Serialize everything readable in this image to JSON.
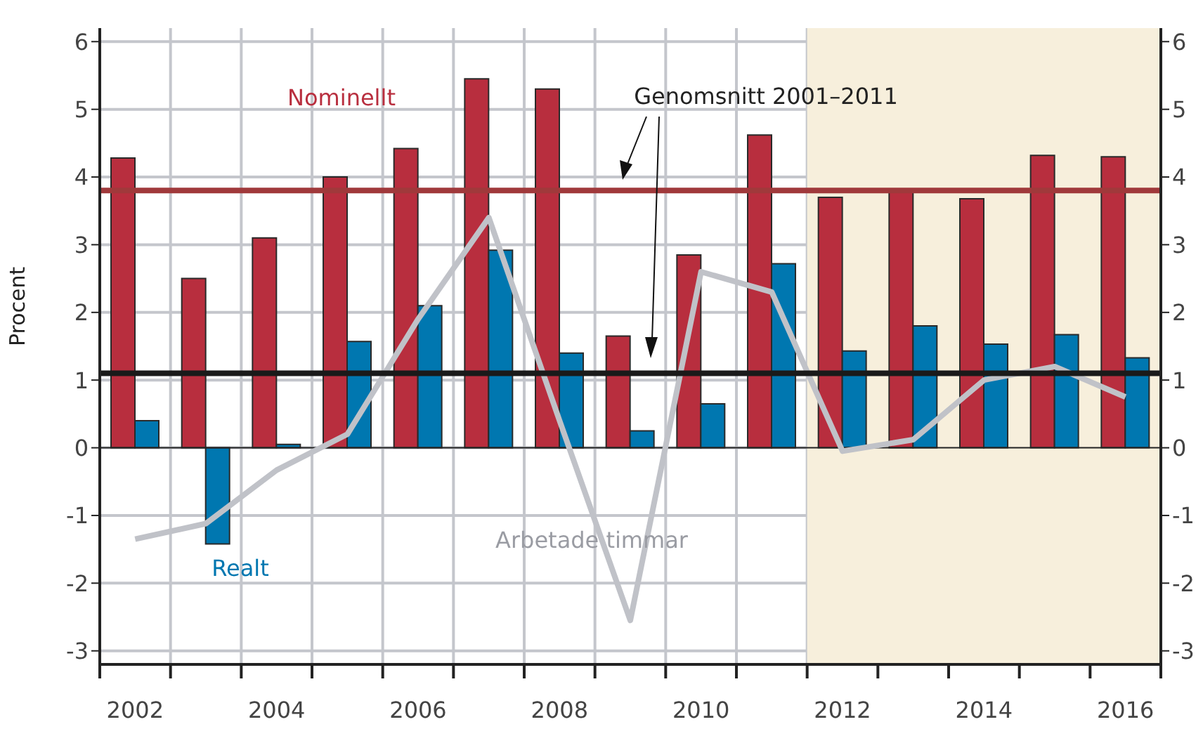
{
  "chart_data": {
    "type": "bar",
    "ylabel": "Procent",
    "x": [
      2002,
      2003,
      2004,
      2005,
      2006,
      2007,
      2008,
      2009,
      2010,
      2011,
      2012,
      2013,
      2014,
      2015,
      2016
    ],
    "series": [
      {
        "name": "Nominellt",
        "color": "#b82e3e",
        "values": [
          4.28,
          2.5,
          3.1,
          4.0,
          4.42,
          5.45,
          5.3,
          1.65,
          2.85,
          4.62,
          3.7,
          3.78,
          3.68,
          4.32,
          4.3
        ]
      },
      {
        "name": "Realt",
        "color": "#0077b0",
        "values": [
          0.4,
          -1.42,
          0.05,
          1.57,
          2.1,
          2.92,
          1.4,
          0.25,
          0.65,
          2.72,
          1.43,
          1.8,
          1.53,
          1.67,
          1.33
        ]
      },
      {
        "name": "Arbetade timmar",
        "type": "line",
        "color": "#c0c2c8",
        "values": [
          -1.35,
          -1.12,
          -0.33,
          0.2,
          1.9,
          3.4,
          0.4,
          -2.55,
          2.6,
          2.3,
          -0.05,
          0.12,
          1.0,
          1.2,
          0.75
        ]
      }
    ],
    "xlim": [
      2001.5,
      2016.5
    ],
    "xticks": [
      {
        "value": 2001.5,
        "label": null
      },
      2002,
      {
        "value": 2002.5,
        "label": null
      },
      {
        "value": 2003.5,
        "label": null
      },
      2004,
      {
        "value": 2004.5,
        "label": null
      },
      {
        "value": 2005.5,
        "label": null
      },
      2006,
      {
        "value": 2006.5,
        "label": null
      },
      {
        "value": 2007.5,
        "label": null
      },
      2008,
      {
        "value": 2008.5,
        "label": null
      },
      {
        "value": 2009.5,
        "label": null
      },
      2010,
      {
        "value": 2010.5,
        "label": null
      },
      {
        "value": 2011.5,
        "label": null
      },
      2012,
      {
        "value": 2012.5,
        "label": null
      },
      {
        "value": 2013.5,
        "label": null
      },
      2014,
      {
        "value": 2014.5,
        "label": null
      },
      {
        "value": 2015.5,
        "label": null
      },
      2016,
      {
        "value": 2016.5,
        "label": null
      }
    ],
    "ylim": [
      -3.2,
      6.2
    ],
    "yticks": [
      -3,
      -2,
      -1,
      0,
      1,
      2,
      3,
      4,
      5,
      6
    ],
    "y2lim": [
      -3.2,
      6.2
    ],
    "y2ticks": [
      -3,
      -2,
      -1,
      0,
      1,
      2,
      3,
      4,
      5,
      6
    ],
    "ref_lines": [
      {
        "axis": "y",
        "value": 3.8,
        "color": "#a0393b"
      },
      {
        "axis": "y",
        "value": 1.1,
        "color": "#1a1a1a"
      }
    ],
    "bands": [
      {
        "axis": "x",
        "from": 2011.5,
        "to": 2016.5,
        "color": "#f7efdc"
      }
    ],
    "annotations": [
      "Genomsnitt 2001–2011"
    ],
    "grid": true
  }
}
